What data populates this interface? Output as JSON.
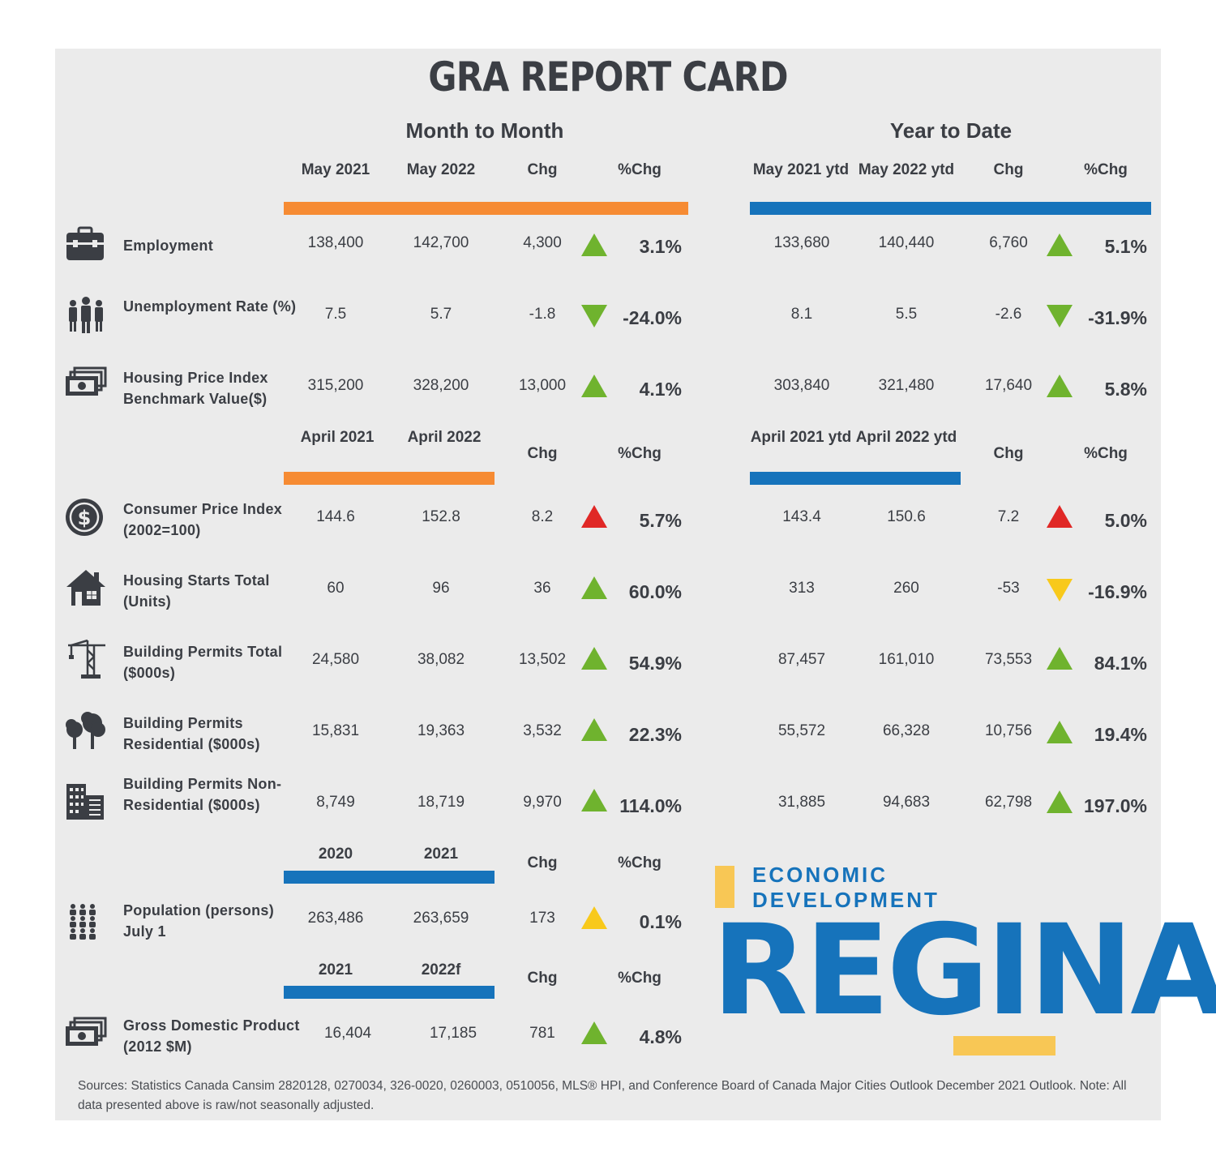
{
  "title": "GRA REPORT CARD",
  "sections": {
    "month": "Month to Month",
    "ytd": "Year to Date"
  },
  "headers": {
    "g1": {
      "m1": "May 2021",
      "m2": "May 2022",
      "mchg": "Chg",
      "mpct": "%Chg",
      "y1": "May 2021 ytd",
      "y2": "May 2022 ytd",
      "ychg": "Chg",
      "ypct": "%Chg"
    },
    "g2": {
      "m1": "April 2021",
      "m2": "April 2022",
      "mchg": "Chg",
      "mpct": "%Chg",
      "y1": "April 2021 ytd",
      "y2": "April 2022 ytd",
      "ychg": "Chg",
      "ypct": "%Chg"
    },
    "g3": {
      "m1": "2020",
      "m2": "2021",
      "mchg": "Chg",
      "mpct": "%Chg"
    },
    "g4": {
      "m1": "2021",
      "m2": "2022f",
      "mchg": "Chg",
      "mpct": "%Chg"
    }
  },
  "rows": [
    {
      "label": "Employment",
      "icon": "briefcase-icon",
      "m": [
        "138,400",
        "142,700",
        "4,300",
        "3.1%"
      ],
      "y": [
        "133,680",
        "140,440",
        "6,760",
        "5.1%"
      ]
    },
    {
      "label": "Unemployment Rate (%)",
      "icon": "people-icon",
      "m": [
        "7.5",
        "5.7",
        "-1.8",
        "-24.0%"
      ],
      "y": [
        "8.1",
        "5.5",
        "-2.6",
        "-31.9%"
      ]
    },
    {
      "label": "Housing Price Index Benchmark Value($)",
      "icon": "money-icon",
      "m": [
        "315,200",
        "328,200",
        "13,000",
        "4.1%"
      ],
      "y": [
        "303,840",
        "321,480",
        "17,640",
        "5.8%"
      ]
    },
    {
      "label": "Consumer Price Index (2002=100)",
      "icon": "dollar-coin-icon",
      "m": [
        "144.6",
        "152.8",
        "8.2",
        "5.7%"
      ],
      "y": [
        "143.4",
        "150.6",
        "7.2",
        "5.0%"
      ]
    },
    {
      "label": "Housing Starts Total (Units)",
      "icon": "house-icon",
      "m": [
        "60",
        "96",
        "36",
        "60.0%"
      ],
      "y": [
        "313",
        "260",
        "-53",
        "-16.9%"
      ]
    },
    {
      "label": "Building Permits Total ($000s)",
      "icon": "crane-icon",
      "m": [
        "24,580",
        "38,082",
        "13,502",
        "54.9%"
      ],
      "y": [
        "87,457",
        "161,010",
        "73,553",
        "84.1%"
      ]
    },
    {
      "label": "Building Permits Residential ($000s)",
      "icon": "trees-icon",
      "m": [
        "15,831",
        "19,363",
        "3,532",
        "22.3%"
      ],
      "y": [
        "55,572",
        "66,328",
        "10,756",
        "19.4%"
      ]
    },
    {
      "label": "Building Permits Non-Residential ($000s)",
      "icon": "buildings-icon",
      "m": [
        "8,749",
        "18,719",
        "9,970",
        "114.0%"
      ],
      "y": [
        "31,885",
        "94,683",
        "62,798",
        "197.0%"
      ]
    },
    {
      "label": "Population (persons) July 1",
      "icon": "population-icon",
      "m": [
        "263,486",
        "263,659",
        "173",
        "0.1%"
      ]
    },
    {
      "label": "Gross Domestic Product (2012 $M)",
      "icon": "money-icon",
      "m": [
        "16,404",
        "17,185",
        "781",
        "4.8%"
      ]
    }
  ],
  "indicators": {
    "up": "#6fb32e",
    "down": "#6fb32e",
    "red": "#e02826",
    "yellow": "#f8c91b"
  },
  "logo": {
    "line1": "ECONOMIC",
    "line2": "DEVELOPMENT",
    "city": "REGINA"
  },
  "sources": "Sources: Statistics Canada Cansim 2820128, 0270034, 326-0020, 0260003, 0510056, MLS® HPI, and Conference Board of Canada Major Cities Outlook December 2021 Outlook. Note: All data presented above is raw/not seasonally adjusted."
}
